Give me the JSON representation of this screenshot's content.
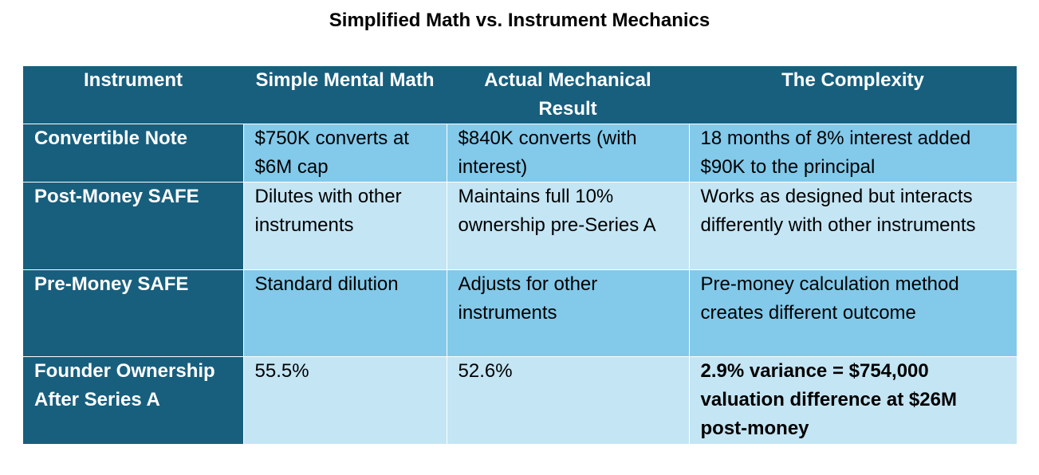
{
  "title": "Simplified Math vs. Instrument Mechanics",
  "table": {
    "headers": [
      "Instrument",
      "Simple Mental Math",
      "Actual Mechanical Result",
      "The Complexity"
    ],
    "rows": [
      [
        "Convertible Note",
        "$750K converts at $6M cap",
        "$840K converts (with interest)",
        "18 months of 8% interest added $90K to the principal"
      ],
      [
        "Post-Money SAFE",
        "Dilutes with other instruments",
        "Maintains full 10% ownership pre-Series A",
        "Works as designed but interacts differently with other instruments"
      ],
      [
        "Pre-Money SAFE",
        "Standard dilution",
        "Adjusts for other instruments",
        "Pre-money calculation method creates different outcome"
      ],
      [
        "Founder Ownership After Series A",
        "55.5%",
        "52.6%",
        "2.9% variance = $754,000 valuation difference at $26M post-money"
      ]
    ]
  },
  "colors": {
    "header_bg": "#185f7e",
    "row_dark": "#82c9ea",
    "row_light": "#c4e5f4"
  }
}
